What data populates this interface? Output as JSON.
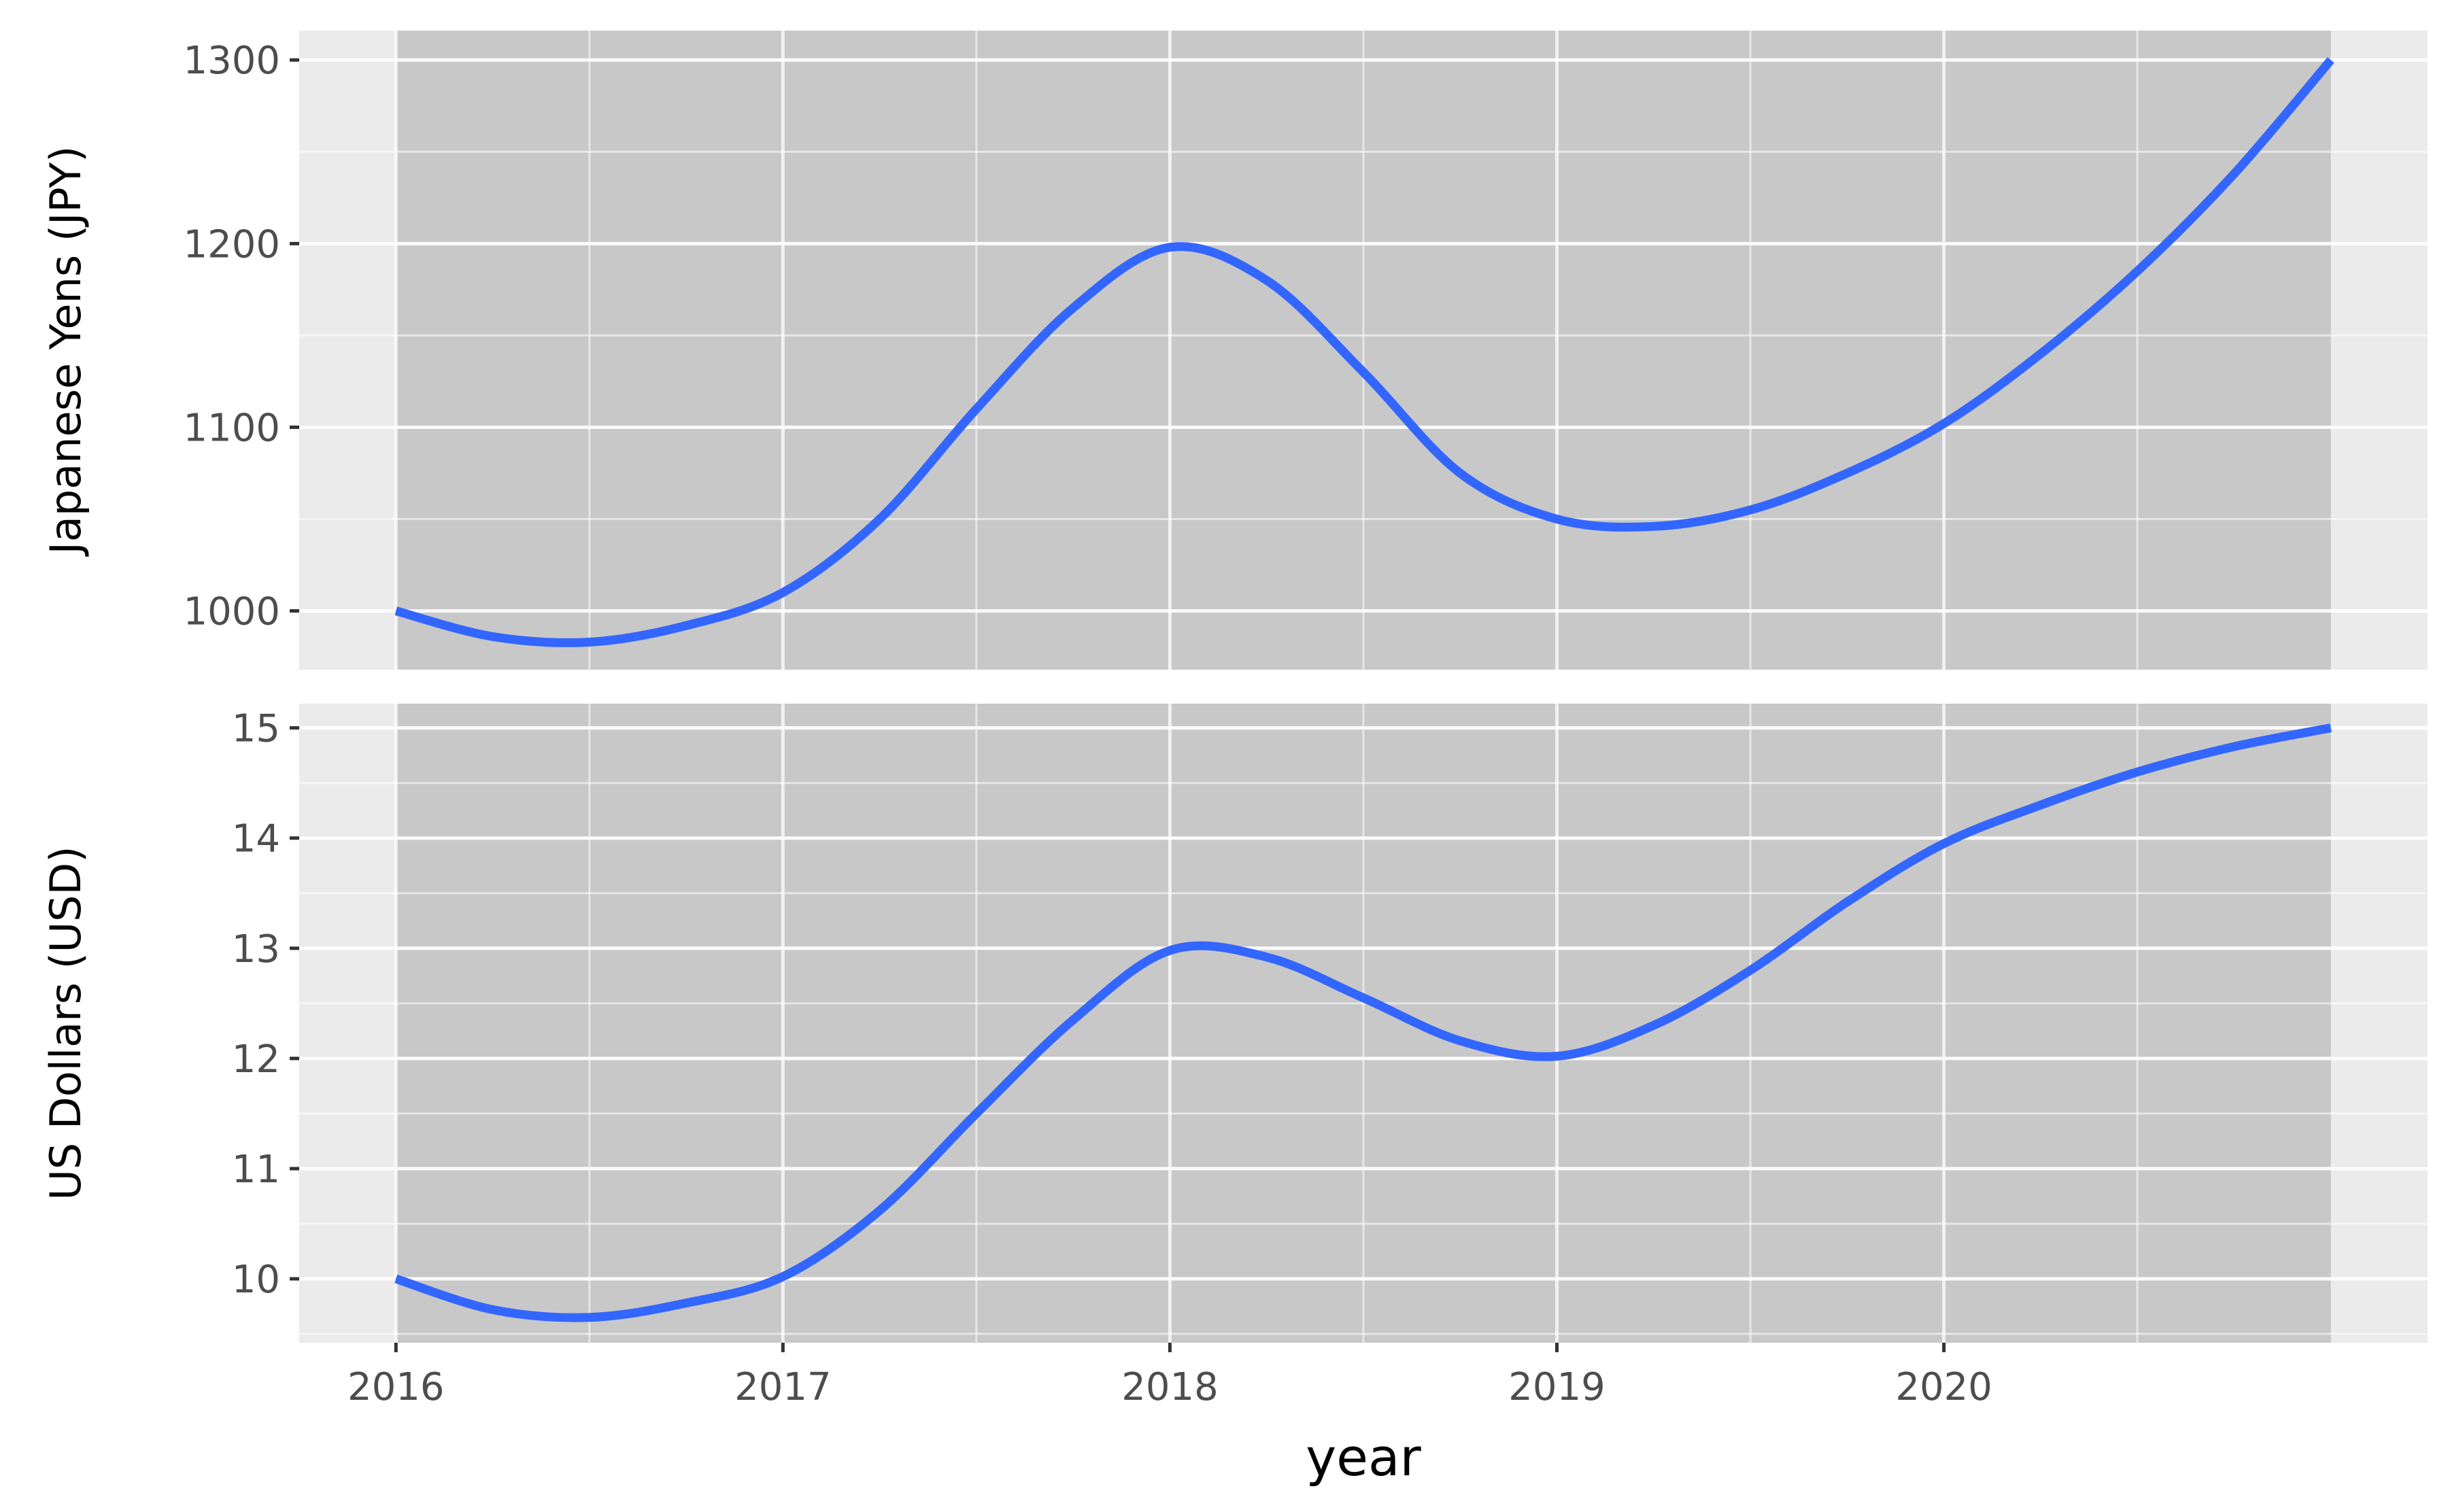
{
  "chart_data": [
    {
      "type": "line",
      "title": "",
      "xlabel": "",
      "ylabel": "Japanese Yens (JPY)",
      "xlim": [
        2015.75,
        2021.25
      ],
      "ylim": [
        968,
        1316
      ],
      "x_ticks": [
        2016,
        2017,
        2018,
        2019,
        2020
      ],
      "y_ticks": [
        1000,
        1100,
        1200,
        1300
      ],
      "y_tick_labels": [
        "1000",
        "1100",
        "1200",
        "1300"
      ],
      "shaded_x_range": [
        2016,
        2021
      ],
      "grid": true,
      "colors": {
        "line": "#3366ff",
        "panel": "#ebebeb",
        "shade": "#c8c8c8",
        "grid": "#ffffff"
      },
      "series": [
        {
          "x": [
            2016,
            2016.25,
            2016.5,
            2016.75,
            2017,
            2017.25,
            2017.5,
            2017.75,
            2018,
            2018.25,
            2018.5,
            2018.75,
            2019,
            2019.25,
            2019.5,
            2019.75,
            2020,
            2020.25,
            2020.5,
            2020.75,
            2021
          ],
          "values": [
            1000,
            986,
            983,
            992,
            1010,
            1050,
            1110,
            1165,
            1198,
            1180,
            1130,
            1075,
            1050,
            1046,
            1055,
            1075,
            1102,
            1140,
            1185,
            1238,
            1300
          ]
        }
      ]
    },
    {
      "type": "line",
      "title": "",
      "xlabel": "year",
      "ylabel": "US Dollars (USD)",
      "xlim": [
        2015.75,
        2021.25
      ],
      "ylim": [
        9.42,
        15.22
      ],
      "x_ticks": [
        2016,
        2017,
        2018,
        2019,
        2020
      ],
      "x_tick_labels": [
        "2016",
        "2017",
        "2018",
        "2019",
        "2020"
      ],
      "y_ticks": [
        10,
        11,
        12,
        13,
        14,
        15
      ],
      "y_tick_labels": [
        "10",
        "11",
        "12",
        "13",
        "14",
        "15"
      ],
      "shaded_x_range": [
        2016,
        2021
      ],
      "grid": true,
      "colors": {
        "line": "#3366ff",
        "panel": "#ebebeb",
        "shade": "#c8c8c8",
        "grid": "#ffffff"
      },
      "series": [
        {
          "x": [
            2016,
            2016.25,
            2016.5,
            2016.75,
            2017,
            2017.25,
            2017.5,
            2017.75,
            2018,
            2018.25,
            2018.5,
            2018.75,
            2019,
            2019.25,
            2019.5,
            2019.75,
            2020,
            2020.25,
            2020.5,
            2020.75,
            2021
          ],
          "values": [
            10,
            9.72,
            9.65,
            9.78,
            10.02,
            10.62,
            11.5,
            12.35,
            12.98,
            12.92,
            12.55,
            12.16,
            12.02,
            12.3,
            12.8,
            13.42,
            13.95,
            14.3,
            14.6,
            14.83,
            15
          ]
        }
      ]
    }
  ]
}
